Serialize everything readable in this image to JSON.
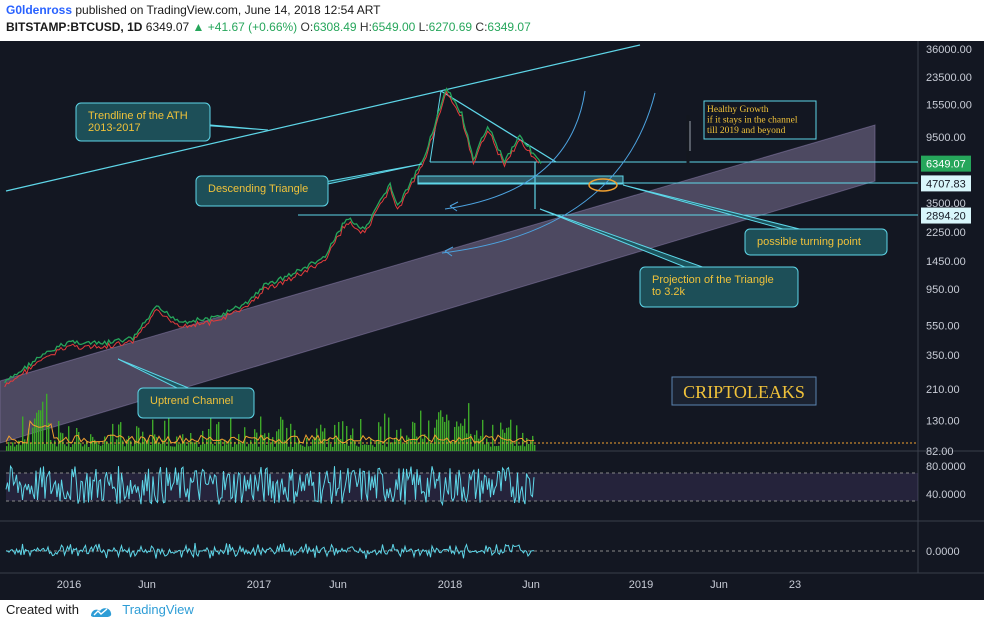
{
  "header": {
    "author": "G0ldenross",
    "published": "published on TradingView.com, June 14, 2018 12:54 ART",
    "symbol": "BITSTAMP:BTCUSD, 1D",
    "last": "6349.07",
    "change": "+41.67 (+0.66%)",
    "o_label": "O:",
    "o_value": "6308.49",
    "h_label": "H:",
    "h_value": "6549.00",
    "l_label": "L:",
    "l_value": "6270.69",
    "c_label": "C:",
    "c_value": "6349.07"
  },
  "footer": {
    "created_with": "Created with",
    "brand": "TradingView"
  },
  "colors": {
    "background": "#131722",
    "accent": "#5ed6e8",
    "price_up": "#26a65b",
    "channel": "#b9a7d6",
    "volume": "#3ea82a",
    "annotation_text": "#f0c23a"
  },
  "annotations": {
    "trendline": "Trendline of the ATH\n2013-2017",
    "descending": "Descending Triangle",
    "turning": "possible turning point",
    "projection": "Projection of the Triangle\nto 3.2k",
    "uptrend": "Uptrend Channel",
    "healthy": "Healthy Growth\nif it stays in the channel\ntill 2019 and beyond",
    "brand": "CRIPTOLEAKS"
  },
  "chart_data": {
    "type": "line",
    "title": "BITSTAMP:BTCUSD, 1D",
    "y_scale": "log",
    "ylim": [
      82,
      36000
    ],
    "x_ticks": [
      "2016",
      "Jun",
      "2017",
      "Jun",
      "2018",
      "Jun",
      "2019",
      "Jun",
      "23"
    ],
    "y_ticks": [
      36000,
      23500,
      15500,
      9500,
      6349.07,
      4707.83,
      3500,
      2894.2,
      2250,
      1450,
      950,
      550,
      350,
      210,
      130,
      82
    ],
    "price_labels": {
      "last": "6349.07",
      "support": "4707.83",
      "target": "2894.20"
    },
    "series": [
      {
        "x": [
          "2015-09-01",
          "2015-11-01",
          "2016-01-01",
          "2016-03-01",
          "2016-05-01",
          "2016-06-15",
          "2016-08-01",
          "2016-10-01",
          "2016-12-01",
          "2017-01-05",
          "2017-03-01",
          "2017-05-01",
          "2017-06-10",
          "2017-07-15",
          "2017-09-01",
          "2017-09-15",
          "2017-11-01",
          "2017-12-17",
          "2018-01-15",
          "2018-02-06",
          "2018-03-05",
          "2018-04-06",
          "2018-05-05",
          "2018-06-14"
        ],
        "values": [
          230,
          330,
          430,
          415,
          450,
          720,
          580,
          610,
          760,
          1000,
          1200,
          1550,
          2800,
          2300,
          4700,
          3300,
          6500,
          19600,
          13500,
          6600,
          11400,
          6600,
          9800,
          6349
        ]
      }
    ],
    "oscillators": [
      {
        "ylim": [
          0,
          100
        ],
        "y_ticks": [
          80.0,
          40.0
        ],
        "guides": [
          70,
          30
        ]
      },
      {
        "y_ticks": [
          0.0
        ]
      }
    ]
  }
}
